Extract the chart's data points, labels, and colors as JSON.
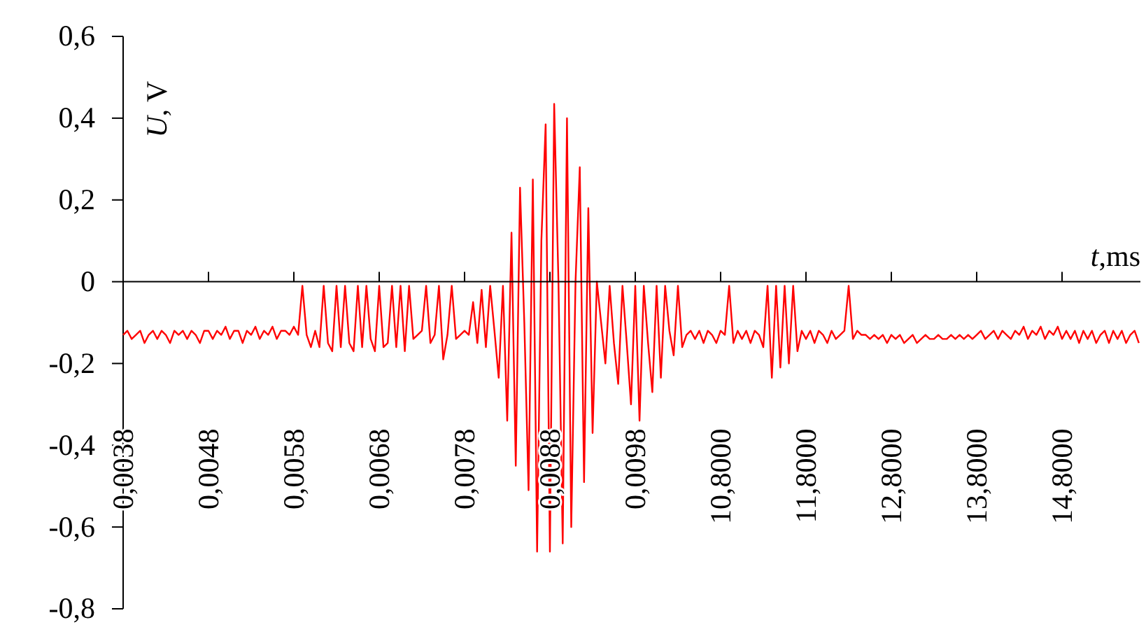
{
  "chart_data": {
    "type": "line",
    "xlabel": "t,ms",
    "ylabel": "U, V",
    "categories": [
      "0,0038",
      null,
      null,
      null,
      null,
      null,
      null,
      null,
      null,
      null,
      null,
      null,
      null,
      null,
      null,
      null,
      null,
      null,
      null,
      null,
      "0,0048",
      null,
      null,
      null,
      null,
      null,
      null,
      null,
      null,
      null,
      null,
      null,
      null,
      null,
      null,
      null,
      null,
      null,
      null,
      null,
      "0,0058",
      null,
      null,
      null,
      null,
      null,
      null,
      null,
      null,
      null,
      null,
      null,
      null,
      null,
      null,
      null,
      null,
      null,
      null,
      null,
      "0,0068",
      null,
      null,
      null,
      null,
      null,
      null,
      null,
      null,
      null,
      null,
      null,
      null,
      null,
      null,
      null,
      null,
      null,
      null,
      null,
      "0,0078",
      null,
      null,
      null,
      null,
      null,
      null,
      null,
      null,
      null,
      null,
      null,
      null,
      null,
      null,
      null,
      null,
      null,
      null,
      null,
      "0,0088",
      null,
      null,
      null,
      null,
      null,
      null,
      null,
      null,
      null,
      null,
      null,
      null,
      null,
      null,
      null,
      null,
      null,
      null,
      null,
      "0,0098",
      null,
      null,
      null,
      null,
      null,
      null,
      null,
      null,
      null,
      null,
      null,
      null,
      null,
      null,
      null,
      null,
      null,
      null,
      null,
      "10,8000",
      null,
      null,
      null,
      null,
      null,
      null,
      null,
      null,
      null,
      null,
      null,
      null,
      null,
      null,
      null,
      null,
      null,
      null,
      null,
      "11,8000",
      null,
      null,
      null,
      null,
      null,
      null,
      null,
      null,
      null,
      null,
      null,
      null,
      null,
      null,
      null,
      null,
      null,
      null,
      null,
      "12,8000",
      null,
      null,
      null,
      null,
      null,
      null,
      null,
      null,
      null,
      null,
      null,
      null,
      null,
      null,
      null,
      null,
      null,
      null,
      null,
      "13,8000",
      null,
      null,
      null,
      null,
      null,
      null,
      null,
      null,
      null,
      null,
      null,
      null,
      null,
      null,
      null,
      null,
      null,
      null,
      null,
      "14,8000",
      null,
      null,
      null,
      null,
      null,
      null,
      null,
      null,
      null,
      null,
      null,
      null,
      null,
      null,
      null,
      null,
      null,
      null
    ],
    "series": [
      {
        "color": "#ff0000",
        "values": [
          -0.13,
          -0.12,
          -0.14,
          -0.13,
          -0.12,
          -0.15,
          -0.13,
          -0.12,
          -0.14,
          -0.12,
          -0.13,
          -0.15,
          -0.12,
          -0.13,
          -0.12,
          -0.14,
          -0.12,
          -0.13,
          -0.15,
          -0.12,
          -0.12,
          -0.14,
          -0.12,
          -0.13,
          -0.11,
          -0.14,
          -0.12,
          -0.12,
          -0.15,
          -0.12,
          -0.13,
          -0.11,
          -0.14,
          -0.12,
          -0.13,
          -0.11,
          -0.14,
          -0.12,
          -0.12,
          -0.13,
          -0.11,
          -0.13,
          -0.01,
          -0.13,
          -0.16,
          -0.12,
          -0.16,
          -0.01,
          -0.15,
          -0.17,
          -0.01,
          -0.16,
          -0.01,
          -0.15,
          -0.17,
          -0.01,
          -0.16,
          -0.01,
          -0.14,
          -0.17,
          -0.01,
          -0.16,
          -0.15,
          -0.01,
          -0.16,
          -0.01,
          -0.17,
          -0.01,
          -0.14,
          -0.13,
          -0.12,
          -0.01,
          -0.15,
          -0.13,
          -0.01,
          -0.19,
          -0.13,
          -0.01,
          -0.14,
          -0.13,
          -0.12,
          -0.13,
          -0.05,
          -0.15,
          -0.02,
          -0.16,
          -0.01,
          -0.12,
          -0.235,
          -0.01,
          -0.34,
          0.12,
          -0.45,
          0.23,
          -0.1,
          -0.51,
          0.25,
          -0.66,
          0.1,
          0.385,
          -0.66,
          0.435,
          0.0,
          -0.64,
          0.4,
          -0.6,
          0.0,
          0.28,
          -0.49,
          0.18,
          -0.37,
          0.0,
          -0.1,
          -0.2,
          -0.01,
          -0.15,
          -0.25,
          -0.01,
          -0.15,
          -0.3,
          -0.01,
          -0.34,
          -0.01,
          -0.15,
          -0.27,
          -0.01,
          -0.235,
          -0.01,
          -0.12,
          -0.18,
          -0.01,
          -0.16,
          -0.13,
          -0.12,
          -0.14,
          -0.12,
          -0.15,
          -0.12,
          -0.13,
          -0.15,
          -0.12,
          -0.13,
          -0.01,
          -0.15,
          -0.12,
          -0.14,
          -0.12,
          -0.15,
          -0.12,
          -0.13,
          -0.16,
          -0.01,
          -0.235,
          -0.01,
          -0.21,
          -0.01,
          -0.2,
          -0.01,
          -0.17,
          -0.12,
          -0.14,
          -0.12,
          -0.15,
          -0.12,
          -0.13,
          -0.15,
          -0.12,
          -0.14,
          -0.13,
          -0.12,
          -0.01,
          -0.14,
          -0.12,
          -0.13,
          -0.13,
          -0.14,
          -0.13,
          -0.14,
          -0.13,
          -0.15,
          -0.13,
          -0.14,
          -0.13,
          -0.15,
          -0.14,
          -0.13,
          -0.15,
          -0.14,
          -0.13,
          -0.14,
          -0.14,
          -0.13,
          -0.14,
          -0.14,
          -0.13,
          -0.14,
          -0.13,
          -0.14,
          -0.13,
          -0.14,
          -0.13,
          -0.12,
          -0.14,
          -0.13,
          -0.12,
          -0.14,
          -0.12,
          -0.13,
          -0.14,
          -0.12,
          -0.13,
          -0.11,
          -0.14,
          -0.12,
          -0.13,
          -0.11,
          -0.14,
          -0.12,
          -0.13,
          -0.11,
          -0.14,
          -0.12,
          -0.14,
          -0.12,
          -0.15,
          -0.12,
          -0.14,
          -0.12,
          -0.15,
          -0.13,
          -0.12,
          -0.15,
          -0.12,
          -0.14,
          -0.12,
          -0.15,
          -0.13,
          -0.12,
          -0.15
        ]
      }
    ],
    "ylim": [
      -0.8,
      0.6
    ],
    "yticks": [
      {
        "value": -0.8,
        "label": "-0,8"
      },
      {
        "value": -0.6,
        "label": "-0,6"
      },
      {
        "value": -0.4,
        "label": "-0,4"
      },
      {
        "value": -0.2,
        "label": "-0,2"
      },
      0,
      {
        "value": 0.2,
        "label": "0,2"
      },
      {
        "value": 0.4,
        "label": "0,4"
      },
      {
        "value": 0.6,
        "label": "0,6"
      }
    ]
  }
}
